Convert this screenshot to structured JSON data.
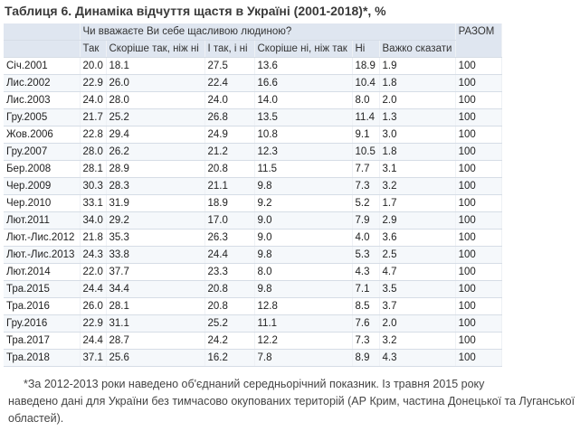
{
  "title": "Таблиця 6. Динаміка відчуття щастя в Україні (2001-2018)*, %",
  "table": {
    "question": "Чи вважаєте Ви себе щасливою людиною?",
    "total_label": "РАЗОМ",
    "columns": [
      "Так",
      "Скоріше так, ніж ні",
      "І так, і ні",
      "Скоріше ні, ніж так",
      "Ні",
      "Важко сказати"
    ],
    "rows": [
      {
        "period": "Січ.2001",
        "v": [
          "20.0",
          "18.1",
          "27.5",
          "13.6",
          "18.9",
          "1.9"
        ],
        "total": "100"
      },
      {
        "period": "Лис.2002",
        "v": [
          "22.9",
          "26.0",
          "22.4",
          "16.6",
          "10.4",
          "1.8"
        ],
        "total": "100"
      },
      {
        "period": "Лис.2003",
        "v": [
          "24.0",
          "28.0",
          "24.0",
          "14.0",
          "8.0",
          "2.0"
        ],
        "total": "100"
      },
      {
        "period": "Гру.2005",
        "v": [
          "21.7",
          "25.2",
          "26.8",
          "13.5",
          "11.4",
          "1.3"
        ],
        "total": "100"
      },
      {
        "period": "Жов.2006",
        "v": [
          "22.8",
          "29.4",
          "24.9",
          "10.8",
          "9.1",
          "3.0"
        ],
        "total": "100"
      },
      {
        "period": "Гру.2007",
        "v": [
          "28.0",
          "26.2",
          "21.2",
          "12.3",
          "10.5",
          "1.8"
        ],
        "total": "100"
      },
      {
        "period": "Бер.2008",
        "v": [
          "28.1",
          "28.9",
          "20.8",
          "11.5",
          "7.7",
          "3.1"
        ],
        "total": "100"
      },
      {
        "period": "Чер.2009",
        "v": [
          "30.3",
          "28.3",
          "21.1",
          "9.8",
          "7.3",
          "3.2"
        ],
        "total": "100"
      },
      {
        "period": "Чер.2010",
        "v": [
          "33.1",
          "31.9",
          "18.9",
          "9.2",
          "5.2",
          "1.7"
        ],
        "total": "100"
      },
      {
        "period": "Лют.2011",
        "v": [
          "34.0",
          "29.2",
          "17.0",
          "9.0",
          "7.9",
          "2.9"
        ],
        "total": "100"
      },
      {
        "period": "Лют.-Лис.2012",
        "v": [
          "21.8",
          "35.3",
          "26.3",
          "9.0",
          "4.0",
          "3.6"
        ],
        "total": "100"
      },
      {
        "period": "Лют.-Лис.2013",
        "v": [
          "24.3",
          "33.8",
          "24.4",
          "9.8",
          "5.3",
          "2.5"
        ],
        "total": "100"
      },
      {
        "period": "Лют.2014",
        "v": [
          "22.0",
          "37.7",
          "23.3",
          "8.0",
          "4.3",
          "4.7"
        ],
        "total": "100"
      },
      {
        "period": "Тра.2015",
        "v": [
          "24.4",
          "34.4",
          "20.8",
          "9.8",
          "7.1",
          "3.5"
        ],
        "total": "100"
      },
      {
        "period": "Тра.2016",
        "v": [
          "26.0",
          "28.1",
          "20.8",
          "12.8",
          "8.5",
          "3.7"
        ],
        "total": "100"
      },
      {
        "period": "Гру.2016",
        "v": [
          "22.9",
          "31.1",
          "25.2",
          "11.1",
          "7.6",
          "2.0"
        ],
        "total": "100"
      },
      {
        "period": "Тра.2017",
        "v": [
          "24.4",
          "28.7",
          "24.2",
          "12.2",
          "7.3",
          "3.2"
        ],
        "total": "100"
      },
      {
        "period": "Тра.2018",
        "v": [
          "37.1",
          "25.6",
          "16.2",
          "7.8",
          "8.9",
          "4.3"
        ],
        "total": "100"
      }
    ]
  },
  "note": {
    "line1": "*За 2012-2013 роки наведено об'єднаний середньорічний показник. Із травня 2015 року",
    "line2": "наведено дані для України без тимчасово окупованих територій (АР Крим, частина Донецької та Луганської областей)."
  }
}
